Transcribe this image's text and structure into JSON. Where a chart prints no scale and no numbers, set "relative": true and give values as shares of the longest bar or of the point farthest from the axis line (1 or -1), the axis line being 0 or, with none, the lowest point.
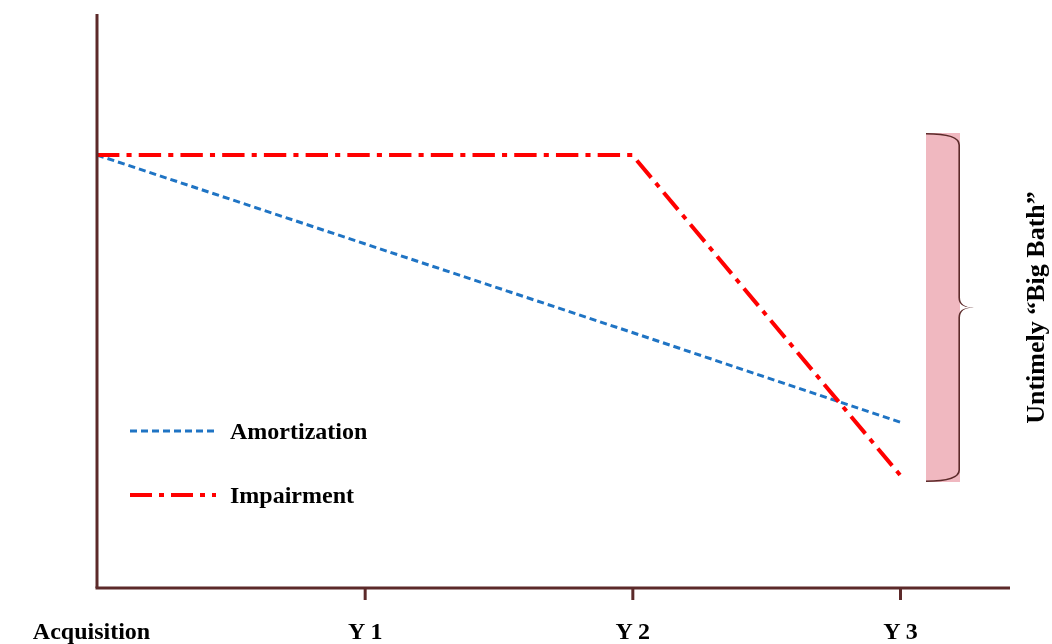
{
  "chart_data": {
    "type": "line",
    "relative": true,
    "categories": [
      "Acquisition",
      "Y 1",
      "Y 2",
      "Y 3"
    ],
    "series": [
      {
        "name": "Amortization",
        "color": "#1f74c4",
        "line_style": "dashed",
        "values": [
          1,
          0.795,
          0.59,
          0.383
        ]
      },
      {
        "name": "Impairment",
        "color": "#ff0000",
        "line_style": "dashdot",
        "values": [
          1,
          1,
          1,
          0.261
        ]
      }
    ],
    "annotations": [
      "Untimely “Big Bath”"
    ],
    "legend": "bottom left",
    "grid": false,
    "marker": "none"
  }
}
